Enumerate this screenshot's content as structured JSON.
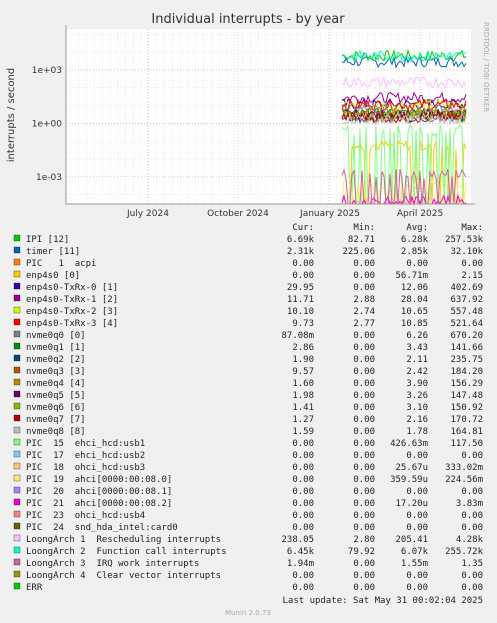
{
  "chart_data": {
    "type": "line",
    "title": "Individual interrupts - by year",
    "ylabel": "interrupts / second",
    "watermark": "RRDTOOL / TOBI OETIKER",
    "y_scale": "log",
    "ylim": [
      3e-05,
      200000
    ],
    "y_ticks": [
      {
        "value": 1000,
        "label": "1e+03"
      },
      {
        "value": 1,
        "label": "1e+00"
      },
      {
        "value": 0.001,
        "label": "1e-03"
      }
    ],
    "x_ticks": [
      "July 2024",
      "October 2024",
      "January 2025",
      "April 2025"
    ],
    "grid": true,
    "columns": [
      "Cur:",
      "Min:",
      "Avg:",
      "Max:"
    ],
    "series": [
      {
        "name": "IPI [12]",
        "color": "#00cc00",
        "cur": "6.69k",
        "min": "82.71",
        "avg": "6.28k",
        "max": "257.53k",
        "level": 6280
      },
      {
        "name": "timer [11]",
        "color": "#0066b3",
        "cur": "2.31k",
        "min": "225.06",
        "avg": "2.85k",
        "max": "32.10k",
        "level": 2850
      },
      {
        "name": "PIC   1  acpi",
        "color": "#ff8000",
        "cur": "0.00",
        "min": "0.00",
        "avg": "0.00",
        "max": "0.00",
        "level": 0
      },
      {
        "name": "enp4s0 [0]",
        "color": "#ffcc00",
        "cur": "0.00",
        "min": "0.00",
        "avg": "56.71m",
        "max": "2.15",
        "level": 0.05671
      },
      {
        "name": "enp4s0-TxRx-0 [1]",
        "color": "#330099",
        "cur": "29.95",
        "min": "0.00",
        "avg": "12.06",
        "max": "402.69",
        "level": 12.06
      },
      {
        "name": "enp4s0-TxRx-1 [2]",
        "color": "#990099",
        "cur": "11.71",
        "min": "2.88",
        "avg": "28.04",
        "max": "637.92",
        "level": 28.04
      },
      {
        "name": "enp4s0-TxRx-2 [3]",
        "color": "#ccff00",
        "cur": "10.10",
        "min": "2.74",
        "avg": "10.65",
        "max": "557.48",
        "level": 10.65
      },
      {
        "name": "enp4s0-TxRx-3 [4]",
        "color": "#ff0000",
        "cur": "9.73",
        "min": "2.77",
        "avg": "10.85",
        "max": "521.64",
        "level": 10.85
      },
      {
        "name": "nvme0q0 [0]",
        "color": "#808080",
        "cur": "87.08m",
        "min": "0.00",
        "avg": "6.26",
        "max": "670.20",
        "level": 6.26
      },
      {
        "name": "nvme0q1 [1]",
        "color": "#008f00",
        "cur": "2.86",
        "min": "0.00",
        "avg": "3.43",
        "max": "141.66",
        "level": 3.43
      },
      {
        "name": "nvme0q2 [2]",
        "color": "#00487d",
        "cur": "1.90",
        "min": "0.00",
        "avg": "2.11",
        "max": "235.75",
        "level": 2.11
      },
      {
        "name": "nvme0q3 [3]",
        "color": "#b35a00",
        "cur": "9.57",
        "min": "0.00",
        "avg": "2.42",
        "max": "184.20",
        "level": 2.42
      },
      {
        "name": "nvme0q4 [4]",
        "color": "#b38f00",
        "cur": "1.60",
        "min": "0.00",
        "avg": "3.90",
        "max": "156.29",
        "level": 3.9
      },
      {
        "name": "nvme0q5 [5]",
        "color": "#6b006b",
        "cur": "1.98",
        "min": "0.00",
        "avg": "3.26",
        "max": "147.48",
        "level": 3.26
      },
      {
        "name": "nvme0q6 [6]",
        "color": "#8fb300",
        "cur": "1.41",
        "min": "0.00",
        "avg": "3.10",
        "max": "150.92",
        "level": 3.1
      },
      {
        "name": "nvme0q7 [7]",
        "color": "#b30000",
        "cur": "1.27",
        "min": "0.00",
        "avg": "2.16",
        "max": "170.72",
        "level": 2.16
      },
      {
        "name": "nvme0q8 [8]",
        "color": "#bebebe",
        "cur": "1.59",
        "min": "0.00",
        "avg": "1.78",
        "max": "164.81",
        "level": 1.78
      },
      {
        "name": "PIC  15  ehci_hcd:usb1",
        "color": "#80ff80",
        "cur": "0.00",
        "min": "0.00",
        "avg": "426.63m",
        "max": "117.50",
        "level": 0.42663
      },
      {
        "name": "PIC  17  ehci_hcd:usb2",
        "color": "#80c9ff",
        "cur": "0.00",
        "min": "0.00",
        "avg": "0.00",
        "max": "0.00",
        "level": 0
      },
      {
        "name": "PIC  18  ohci_hcd:usb3",
        "color": "#ffc080",
        "cur": "0.00",
        "min": "0.00",
        "avg": "25.67u",
        "max": "333.02m",
        "level": 2.567e-05
      },
      {
        "name": "PIC  19  ahci[0000:00:08.0]",
        "color": "#ffe680",
        "cur": "0.00",
        "min": "0.00",
        "avg": "359.59u",
        "max": "224.56m",
        "level": 0.00035959
      },
      {
        "name": "PIC  20  ahci[0000:00:08.1]",
        "color": "#aa80ff",
        "cur": "0.00",
        "min": "0.00",
        "avg": "0.00",
        "max": "0.00",
        "level": 0
      },
      {
        "name": "PIC  21  ahci[0000:00:08.2]",
        "color": "#ee00cc",
        "cur": "0.00",
        "min": "0.00",
        "avg": "17.20u",
        "max": "3.83m",
        "level": 1.72e-05
      },
      {
        "name": "PIC  23  ohci_hcd:usb4",
        "color": "#ff8080",
        "cur": "0.00",
        "min": "0.00",
        "avg": "0.00",
        "max": "0.00",
        "level": 0
      },
      {
        "name": "PIC  24  snd_hda_intel:card0",
        "color": "#666600",
        "cur": "0.00",
        "min": "0.00",
        "avg": "0.00",
        "max": "0.00",
        "level": 0
      },
      {
        "name": "LoongArch 1  Rescheduling interrupts",
        "color": "#ffbfff",
        "cur": "238.05",
        "min": "2.80",
        "avg": "205.41",
        "max": "4.28k",
        "level": 205.41
      },
      {
        "name": "LoongArch 2  Function call interrupts",
        "color": "#00ffcc",
        "cur": "6.45k",
        "min": "79.92",
        "avg": "6.07k",
        "max": "255.72k",
        "level": 6070
      },
      {
        "name": "LoongArch 3  IRQ work interrupts",
        "color": "#cc6699",
        "cur": "1.94m",
        "min": "0.00",
        "avg": "1.55m",
        "max": "1.35",
        "level": 0.00155
      },
      {
        "name": "LoongArch 4  Clear vector interrupts",
        "color": "#999900",
        "cur": "0.00",
        "min": "0.00",
        "avg": "0.00",
        "max": "0.00",
        "level": 0
      },
      {
        "name": "ERR",
        "color": "#00cc00",
        "cur": "0.00",
        "min": "0.00",
        "avg": "0.00",
        "max": "0.00",
        "level": 0
      }
    ]
  },
  "footer": {
    "last_update": "Last update: Sat May 31 00:02:04 2025",
    "munin": "Munin 2.0.73"
  }
}
